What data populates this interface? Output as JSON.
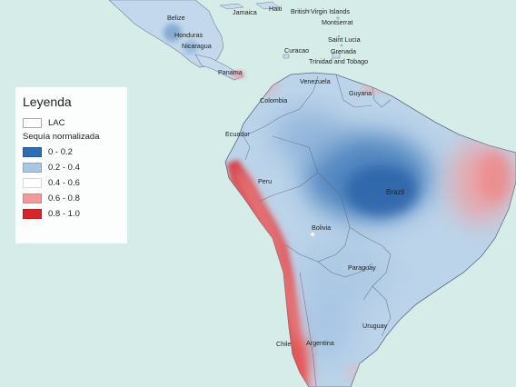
{
  "legend": {
    "title": "Leyenda",
    "lac_label": "LAC",
    "subtitle": "Sequía normalizada",
    "classes": [
      {
        "label": "0 - 0.2",
        "color": "#2f6db3"
      },
      {
        "label": "0.2 - 0.4",
        "color": "#a9c6e2"
      },
      {
        "label": "0.4 - 0.6",
        "color": "#ffffff"
      },
      {
        "label": "0.6 - 0.8",
        "color": "#f29a9a"
      },
      {
        "label": "0.8 - 1.0",
        "color": "#d7262b"
      }
    ]
  },
  "labels": {
    "belize": "Belize",
    "haiti": "Haiti",
    "jamaica": "Jamaica",
    "bvi": "British Virgin Islands",
    "montserrat": "Montserrat",
    "honduras": "Honduras",
    "nicaragua": "Nicaragua",
    "curacao": "Curacao",
    "saint_lucia": "Saint Lucia",
    "grenada": "Grenada",
    "trinidad": "Trinidad and Tobago",
    "panama": "Panama",
    "venezuela": "Venezuela",
    "guyana": "Guyana",
    "colombia": "Colombia",
    "ecuador": "Ecuador",
    "peru": "Peru",
    "brazil": "Brazil",
    "bolivia": "Bolivia",
    "paraguay": "Paraguay",
    "chile": "Chile",
    "argentina": "Argentina",
    "uruguay": "Uruguay"
  },
  "colors": {
    "sea": "#d6ece9",
    "land_base": "#bcd4ea",
    "dry_strong": "#d7262b",
    "dry": "#f29a9a",
    "wet_strong": "#2f6db3",
    "border": "#5b6b80"
  }
}
